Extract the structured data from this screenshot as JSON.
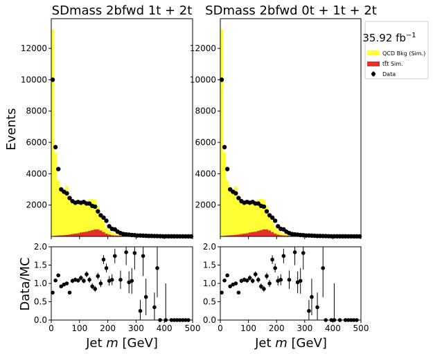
{
  "lumi_label": "35.92 fb",
  "lumi_exp": "−1",
  "legend": [
    {
      "label": "QCD Bkg (Sim.)",
      "color": "#ffff33"
    },
    {
      "label_pre": "t",
      "label_post": "t Sim.",
      "color": "#e8302a"
    },
    {
      "label": "Data",
      "color": "#000000"
    }
  ],
  "colors": {
    "qcd": "#ffff33",
    "ttbar": "#e8302a",
    "data": "#000000"
  },
  "chart_data": [
    {
      "type": "bar",
      "title": "SDmass  2bfwd 1t + 2t",
      "ylabel": "Events",
      "xlabel_pre": "Jet ",
      "xlabel_var": "m",
      "xlabel_post": " [GeV]",
      "xlim": [
        0,
        500
      ],
      "ylim": [
        0,
        13900
      ],
      "xticks": [
        "0",
        "100",
        "200",
        "300",
        "400",
        "500"
      ],
      "yticks": [
        "2000",
        "4000",
        "6000",
        "8000",
        "10000",
        "12000"
      ],
      "bin_width": 10,
      "qcd": [
        13200,
        5300,
        3500,
        3100,
        2800,
        3100,
        2400,
        2000,
        1900,
        1950,
        1800,
        1850,
        1900,
        2000,
        2000,
        1900,
        1500,
        1100,
        700,
        400,
        280,
        180,
        120,
        90,
        80,
        60,
        55,
        50,
        40,
        35,
        30,
        30,
        25,
        20,
        20,
        15,
        15,
        10,
        10,
        10,
        10,
        10,
        8,
        8,
        6,
        5,
        5,
        4,
        3,
        3
      ],
      "ttbar": [
        20,
        40,
        60,
        70,
        80,
        100,
        120,
        150,
        180,
        200,
        250,
        280,
        300,
        350,
        400,
        450,
        450,
        380,
        280,
        180,
        120,
        80,
        60,
        50,
        40,
        30,
        25,
        20,
        15,
        10,
        8,
        6,
        5,
        4,
        3,
        3,
        2,
        2,
        2,
        2,
        1,
        1,
        1,
        1,
        1,
        1,
        1,
        1,
        1,
        1
      ],
      "data": [
        10000,
        5700,
        4300,
        3000,
        2850,
        2750,
        2450,
        2250,
        2150,
        2200,
        2150,
        2200,
        2100,
        2100,
        1950,
        1900,
        1600,
        1350,
        1200,
        1000,
        650,
        480,
        450,
        300,
        210,
        150,
        130,
        110,
        90,
        80,
        60,
        60,
        50,
        40,
        30,
        30,
        25,
        20,
        15,
        10,
        10,
        8,
        8,
        6,
        5,
        4,
        4,
        3,
        2,
        1
      ],
      "ratio_ylabel": "Data/MC",
      "ratio_ylim": [
        0,
        2
      ],
      "ratio_yticks": [
        "0.0",
        "0.5",
        "1.0",
        "1.5",
        "2.0"
      ],
      "ratio": [
        {
          "x": 5,
          "y": 0.75,
          "err": 0.04
        },
        {
          "x": 15,
          "y": 1.08,
          "err": 0.03
        },
        {
          "x": 25,
          "y": 1.22,
          "err": 0.04
        },
        {
          "x": 35,
          "y": 0.92,
          "err": 0.04
        },
        {
          "x": 45,
          "y": 0.97,
          "err": 0.04
        },
        {
          "x": 55,
          "y": 1.0,
          "err": 0.05
        },
        {
          "x": 65,
          "y": 0.75,
          "err": 0.05
        },
        {
          "x": 75,
          "y": 1.07,
          "err": 0.06
        },
        {
          "x": 85,
          "y": 1.1,
          "err": 0.06
        },
        {
          "x": 95,
          "y": 1.08,
          "err": 0.06
        },
        {
          "x": 105,
          "y": 1.15,
          "err": 0.07
        },
        {
          "x": 115,
          "y": 1.07,
          "err": 0.07
        },
        {
          "x": 125,
          "y": 1.25,
          "err": 0.08
        },
        {
          "x": 135,
          "y": 1.1,
          "err": 0.08
        },
        {
          "x": 145,
          "y": 0.92,
          "err": 0.08
        },
        {
          "x": 155,
          "y": 0.85,
          "err": 0.08
        },
        {
          "x": 165,
          "y": 1.2,
          "err": 0.09
        },
        {
          "x": 175,
          "y": 1.0,
          "err": 0.1
        },
        {
          "x": 185,
          "y": 1.65,
          "err": 0.12
        },
        {
          "x": 195,
          "y": 1.42,
          "err": 0.12
        },
        {
          "x": 205,
          "y": 1.07,
          "err": 0.13
        },
        {
          "x": 215,
          "y": 1.1,
          "err": 0.15
        },
        {
          "x": 225,
          "y": 1.75,
          "err": 0.2
        },
        {
          "x": 245,
          "y": 1.1,
          "err": 0.25
        },
        {
          "x": 265,
          "y": 1.85,
          "err": 0.35
        },
        {
          "x": 275,
          "y": 1.03,
          "err": 0.3
        },
        {
          "x": 285,
          "y": 1.07,
          "err": 0.35
        },
        {
          "x": 295,
          "y": 1.83,
          "err": 0.45
        },
        {
          "x": 315,
          "y": 0.25,
          "err": 0.3
        },
        {
          "x": 325,
          "y": 1.75,
          "err": 0.55
        },
        {
          "x": 335,
          "y": 0.63,
          "err": 0.5
        },
        {
          "x": 365,
          "y": 0.35,
          "err": 0.4
        },
        {
          "x": 375,
          "y": 1.42,
          "err": 0.8
        },
        {
          "x": 385,
          "y": 0.0,
          "err": 0.0
        },
        {
          "x": 405,
          "y": 0.0,
          "err": 1.0
        },
        {
          "x": 425,
          "y": 0.0,
          "err": 0.0
        },
        {
          "x": 435,
          "y": 0.0,
          "err": 0.0
        },
        {
          "x": 445,
          "y": 0.0,
          "err": 0.0
        },
        {
          "x": 455,
          "y": 0.0,
          "err": 0.0
        },
        {
          "x": 465,
          "y": 0.0,
          "err": 0.0
        },
        {
          "x": 475,
          "y": 0.0,
          "err": 0.0
        },
        {
          "x": 485,
          "y": 0.0,
          "err": 0.0
        }
      ]
    },
    {
      "type": "bar",
      "title": "SDmass  2bfwd 0t + 1t + 2t",
      "ylabel": "",
      "xlabel_pre": "Jet ",
      "xlabel_var": "m",
      "xlabel_post": " [GeV]",
      "xlim": [
        0,
        500
      ],
      "ylim": [
        0,
        13900
      ],
      "xticks": [
        "0",
        "100",
        "200",
        "300",
        "400",
        "500"
      ],
      "yticks": [
        "2000",
        "4000",
        "6000",
        "8000",
        "10000",
        "12000"
      ],
      "bin_width": 10,
      "qcd": [
        13200,
        5300,
        3500,
        3100,
        2800,
        3100,
        2400,
        2000,
        1900,
        1950,
        1800,
        1850,
        1900,
        2000,
        2000,
        1900,
        1500,
        1100,
        700,
        400,
        280,
        180,
        120,
        90,
        80,
        60,
        55,
        50,
        40,
        35,
        30,
        30,
        25,
        20,
        20,
        15,
        15,
        10,
        10,
        10,
        10,
        10,
        8,
        8,
        6,
        5,
        5,
        4,
        3,
        3
      ],
      "ttbar": [
        20,
        40,
        60,
        70,
        80,
        100,
        120,
        150,
        180,
        200,
        250,
        280,
        300,
        350,
        400,
        450,
        450,
        380,
        280,
        180,
        120,
        80,
        60,
        50,
        40,
        30,
        25,
        20,
        15,
        10,
        8,
        6,
        5,
        4,
        3,
        3,
        2,
        2,
        2,
        2,
        1,
        1,
        1,
        1,
        1,
        1,
        1,
        1,
        1,
        1
      ],
      "data": [
        10000,
        5700,
        4300,
        3000,
        2850,
        2750,
        2450,
        2250,
        2150,
        2200,
        2150,
        2200,
        2100,
        2100,
        1950,
        1900,
        1600,
        1350,
        1200,
        1000,
        650,
        480,
        450,
        300,
        210,
        150,
        130,
        110,
        90,
        80,
        60,
        60,
        50,
        40,
        30,
        30,
        25,
        20,
        15,
        10,
        10,
        8,
        8,
        6,
        5,
        4,
        4,
        3,
        2,
        1
      ],
      "ratio_ylabel": "",
      "ratio_ylim": [
        0,
        2
      ],
      "ratio_yticks": [
        "0.0",
        "0.5",
        "1.0",
        "1.5",
        "2.0"
      ],
      "ratio": [
        {
          "x": 5,
          "y": 0.75,
          "err": 0.04
        },
        {
          "x": 15,
          "y": 1.08,
          "err": 0.03
        },
        {
          "x": 25,
          "y": 1.22,
          "err": 0.04
        },
        {
          "x": 35,
          "y": 0.92,
          "err": 0.04
        },
        {
          "x": 45,
          "y": 0.97,
          "err": 0.04
        },
        {
          "x": 55,
          "y": 1.0,
          "err": 0.05
        },
        {
          "x": 65,
          "y": 0.75,
          "err": 0.05
        },
        {
          "x": 75,
          "y": 1.07,
          "err": 0.06
        },
        {
          "x": 85,
          "y": 1.1,
          "err": 0.06
        },
        {
          "x": 95,
          "y": 1.08,
          "err": 0.06
        },
        {
          "x": 105,
          "y": 1.15,
          "err": 0.07
        },
        {
          "x": 115,
          "y": 1.07,
          "err": 0.07
        },
        {
          "x": 125,
          "y": 1.25,
          "err": 0.08
        },
        {
          "x": 135,
          "y": 1.1,
          "err": 0.08
        },
        {
          "x": 145,
          "y": 0.92,
          "err": 0.08
        },
        {
          "x": 155,
          "y": 0.85,
          "err": 0.08
        },
        {
          "x": 165,
          "y": 1.2,
          "err": 0.09
        },
        {
          "x": 175,
          "y": 1.0,
          "err": 0.1
        },
        {
          "x": 185,
          "y": 1.65,
          "err": 0.12
        },
        {
          "x": 195,
          "y": 1.42,
          "err": 0.12
        },
        {
          "x": 205,
          "y": 1.07,
          "err": 0.13
        },
        {
          "x": 215,
          "y": 1.1,
          "err": 0.15
        },
        {
          "x": 225,
          "y": 1.75,
          "err": 0.2
        },
        {
          "x": 245,
          "y": 1.1,
          "err": 0.25
        },
        {
          "x": 265,
          "y": 1.85,
          "err": 0.35
        },
        {
          "x": 275,
          "y": 1.03,
          "err": 0.3
        },
        {
          "x": 285,
          "y": 1.07,
          "err": 0.35
        },
        {
          "x": 295,
          "y": 1.83,
          "err": 0.45
        },
        {
          "x": 315,
          "y": 0.25,
          "err": 0.3
        },
        {
          "x": 325,
          "y": 0.63,
          "err": 0.5
        },
        {
          "x": 345,
          "y": 0.35,
          "err": 0.4
        },
        {
          "x": 365,
          "y": 1.42,
          "err": 0.8
        },
        {
          "x": 375,
          "y": 0.0,
          "err": 0.0
        },
        {
          "x": 395,
          "y": 0.0,
          "err": 0.0
        },
        {
          "x": 405,
          "y": 0.0,
          "err": 1.0
        },
        {
          "x": 425,
          "y": 0.0,
          "err": 0.0
        },
        {
          "x": 445,
          "y": 0.0,
          "err": 0.0
        },
        {
          "x": 455,
          "y": 0.0,
          "err": 0.0
        },
        {
          "x": 465,
          "y": 0.0,
          "err": 0.0
        },
        {
          "x": 475,
          "y": 0.0,
          "err": 0.0
        },
        {
          "x": 485,
          "y": 0.0,
          "err": 0.0
        }
      ]
    }
  ]
}
